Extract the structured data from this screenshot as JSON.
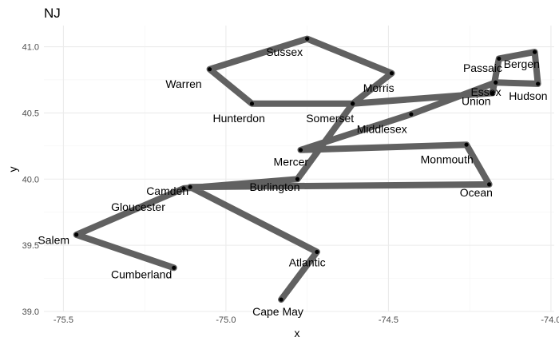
{
  "chart_data": {
    "type": "line",
    "title": "NJ",
    "xlabel": "x",
    "ylabel": "y",
    "xlim": [
      -75.56,
      -73.99
    ],
    "ylim": [
      39.0,
      41.16
    ],
    "x_ticks": [
      {
        "value": -75.5,
        "label": "-75.5"
      },
      {
        "value": -75.0,
        "label": "-75.0"
      },
      {
        "value": -74.5,
        "label": "-74.5"
      },
      {
        "value": -74.0,
        "label": "-74.0"
      }
    ],
    "y_ticks": [
      {
        "value": 39.0,
        "label": "39.0"
      },
      {
        "value": 39.5,
        "label": "39.5"
      },
      {
        "value": 40.0,
        "label": "40.0"
      },
      {
        "value": 40.5,
        "label": "40.5"
      },
      {
        "value": 41.0,
        "label": "41.0"
      }
    ],
    "grid": true,
    "line_color": "#595959",
    "points": [
      {
        "name": "Cape May",
        "x": -74.83,
        "y": 39.09
      },
      {
        "name": "Atlantic",
        "x": -74.72,
        "y": 39.45
      },
      {
        "name": "Camden",
        "x": -75.11,
        "y": 39.94
      },
      {
        "name": "Ocean",
        "x": -74.19,
        "y": 39.96
      },
      {
        "name": "Monmouth",
        "x": -74.26,
        "y": 40.26
      },
      {
        "name": "Mercer",
        "x": -74.77,
        "y": 40.22
      },
      {
        "name": "Middlesex",
        "x": -74.43,
        "y": 40.49
      },
      {
        "name": "Essex",
        "x": -74.17,
        "y": 40.73
      },
      {
        "name": "Hudson",
        "x": -74.04,
        "y": 40.72
      },
      {
        "name": "Bergen",
        "x": -74.05,
        "y": 40.96
      },
      {
        "name": "Passaic",
        "x": -74.16,
        "y": 40.91
      },
      {
        "name": "Union",
        "x": -74.18,
        "y": 40.65
      },
      {
        "name": "Somerset",
        "x": -74.61,
        "y": 40.57
      },
      {
        "name": "Hunterdon",
        "x": -74.92,
        "y": 40.57
      },
      {
        "name": "Warren",
        "x": -75.05,
        "y": 40.83
      },
      {
        "name": "Sussex",
        "x": -74.75,
        "y": 41.06
      },
      {
        "name": "Morris",
        "x": -74.49,
        "y": 40.8
      },
      {
        "name": "Somerset",
        "x": -74.61,
        "y": 40.57
      },
      {
        "name": "Burlington",
        "x": -74.78,
        "y": 40.0
      },
      {
        "name": "Gloucester",
        "x": -75.13,
        "y": 39.93
      },
      {
        "name": "Salem",
        "x": -75.46,
        "y": 39.58
      },
      {
        "name": "Cumberland",
        "x": -75.16,
        "y": 39.33
      }
    ],
    "labels": [
      {
        "text": "Cape May",
        "x": -74.84,
        "y": 39.0,
        "anchor": "middle"
      },
      {
        "text": "Atlantic",
        "x": -74.75,
        "y": 39.37,
        "anchor": "middle"
      },
      {
        "text": "Camden",
        "x": -75.18,
        "y": 39.91,
        "anchor": "middle"
      },
      {
        "text": "Gloucester",
        "x": -75.27,
        "y": 39.79,
        "anchor": "middle"
      },
      {
        "text": "Salem",
        "x": -75.53,
        "y": 39.54,
        "anchor": "middle"
      },
      {
        "text": "Cumberland",
        "x": -75.26,
        "y": 39.28,
        "anchor": "middle"
      },
      {
        "text": "Burlington",
        "x": -74.85,
        "y": 39.94,
        "anchor": "middle"
      },
      {
        "text": "Mercer",
        "x": -74.8,
        "y": 40.13,
        "anchor": "middle"
      },
      {
        "text": "Ocean",
        "x": -74.23,
        "y": 39.9,
        "anchor": "middle"
      },
      {
        "text": "Monmouth",
        "x": -74.32,
        "y": 40.15,
        "anchor": "middle"
      },
      {
        "text": "Middlesex",
        "x": -74.52,
        "y": 40.38,
        "anchor": "middle"
      },
      {
        "text": "Somerset",
        "x": -74.68,
        "y": 40.46,
        "anchor": "middle"
      },
      {
        "text": "Hunterdon",
        "x": -74.96,
        "y": 40.46,
        "anchor": "middle"
      },
      {
        "text": "Warren",
        "x": -75.13,
        "y": 40.72,
        "anchor": "middle"
      },
      {
        "text": "Sussex",
        "x": -74.82,
        "y": 40.96,
        "anchor": "middle"
      },
      {
        "text": "Morris",
        "x": -74.53,
        "y": 40.69,
        "anchor": "middle"
      },
      {
        "text": "Passaic",
        "x": -74.21,
        "y": 40.84,
        "anchor": "middle"
      },
      {
        "text": "Bergen",
        "x": -74.09,
        "y": 40.87,
        "anchor": "middle"
      },
      {
        "text": "Essex",
        "x": -74.2,
        "y": 40.66,
        "anchor": "middle"
      },
      {
        "text": "Union",
        "x": -74.23,
        "y": 40.59,
        "anchor": "middle"
      },
      {
        "text": "Hudson",
        "x": -74.07,
        "y": 40.63,
        "anchor": "middle"
      }
    ]
  }
}
